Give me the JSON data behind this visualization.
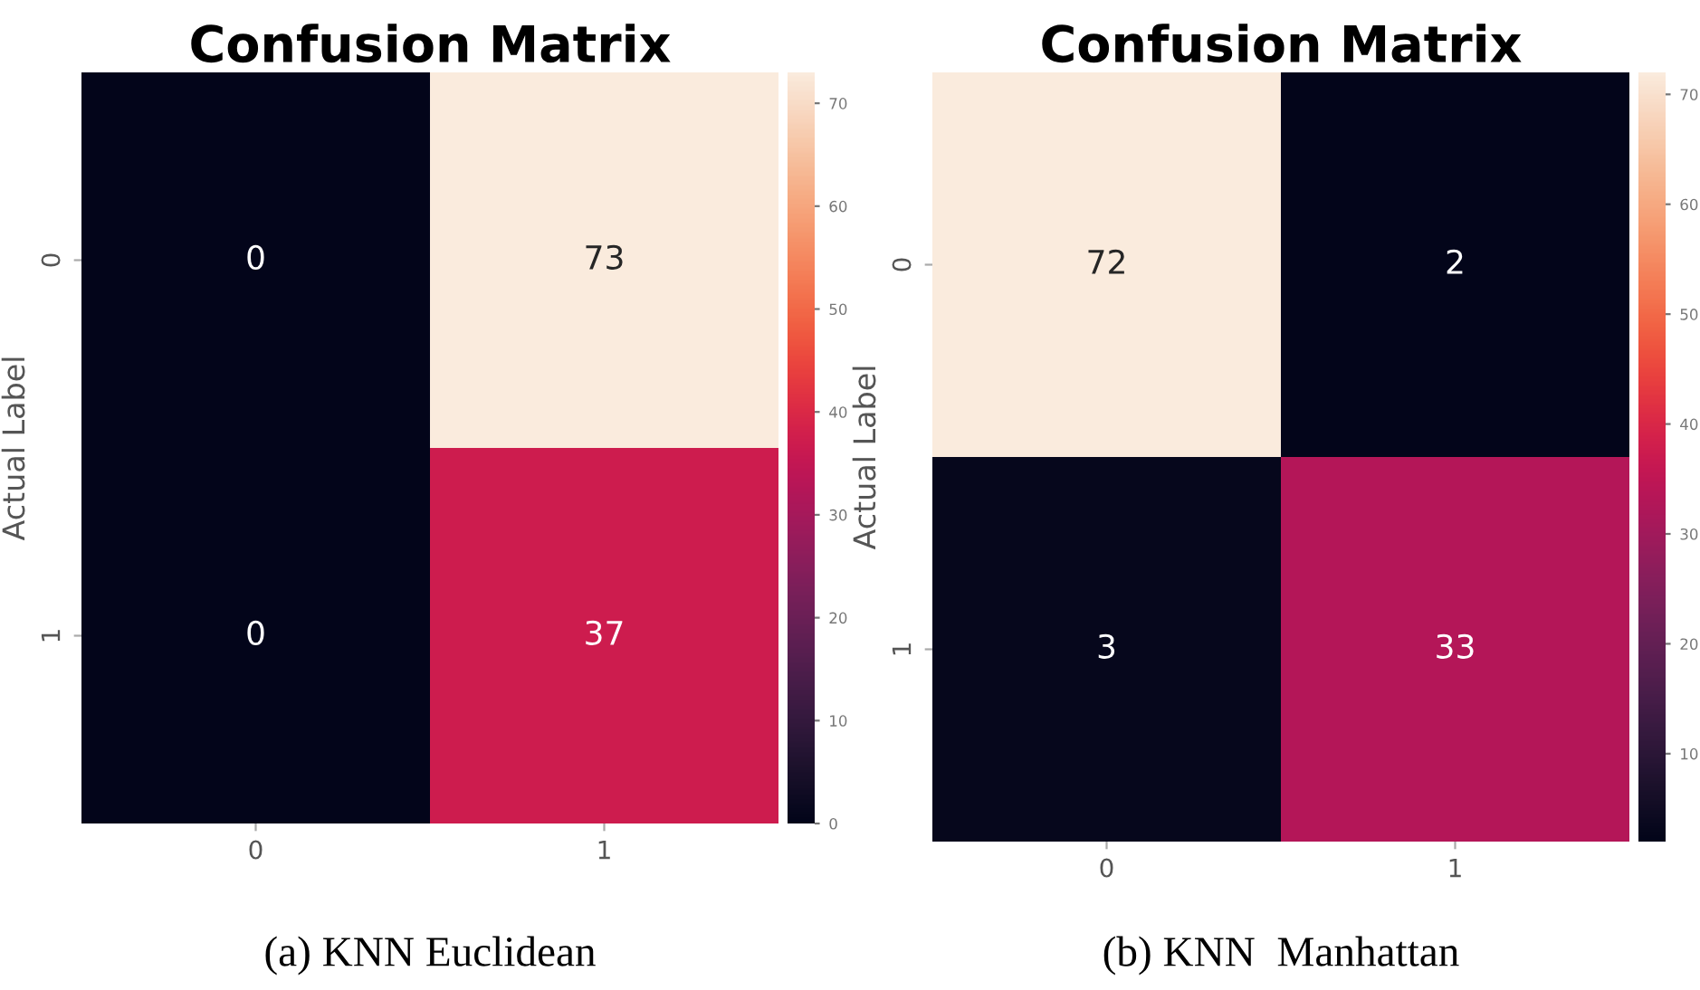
{
  "chart_data": [
    {
      "type": "heatmap",
      "title": "Confusion Matrix",
      "ylabel": "Actual Label",
      "categories": [
        "0",
        "1"
      ],
      "y_categories": [
        "0",
        "1"
      ],
      "cells": [
        [
          0,
          73
        ],
        [
          0,
          37
        ]
      ],
      "data_labels": true,
      "clim": [
        0,
        73
      ],
      "cticks": [
        0,
        10,
        20,
        30,
        40,
        50,
        60,
        70
      ],
      "annotations": [
        "(a) KNN Euclidean"
      ]
    },
    {
      "type": "heatmap",
      "title": "Confusion Matrix",
      "ylabel": "Actual Label",
      "categories": [
        "0",
        "1"
      ],
      "y_categories": [
        "0",
        "1"
      ],
      "cells": [
        [
          72,
          2
        ],
        [
          3,
          33
        ]
      ],
      "data_labels": true,
      "clim": [
        2,
        72
      ],
      "cticks": [
        10,
        20,
        30,
        40,
        50,
        60,
        70
      ],
      "annotations": [
        "(b) KNN  Manhattan"
      ]
    }
  ]
}
